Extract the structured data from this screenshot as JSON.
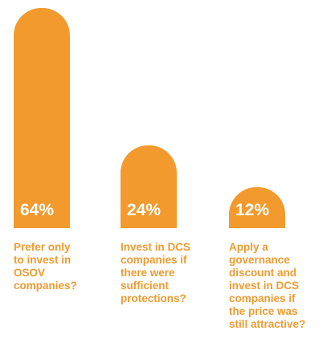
{
  "chart_data": {
    "type": "bar",
    "categories": [
      "Prefer only\nto invest in\nOSOV\ncompanies?",
      "Invest in DCS\ncompanies if\nthere were\nsufficient\nprotections?",
      "Apply a\ngovernance\ndiscount and\ninvest in DCS\ncompanies if\nthe price was\nstill attractive?"
    ],
    "values": [
      64,
      24,
      12
    ],
    "value_labels": [
      "64%",
      "24%",
      "12%"
    ],
    "title": "",
    "xlabel": "",
    "ylabel": "",
    "ylim": [
      0,
      64
    ],
    "grid": false,
    "colors": {
      "bar": "#F29A2E",
      "value_text": "#FFFFFF",
      "label_text": "#F29A2E"
    }
  }
}
